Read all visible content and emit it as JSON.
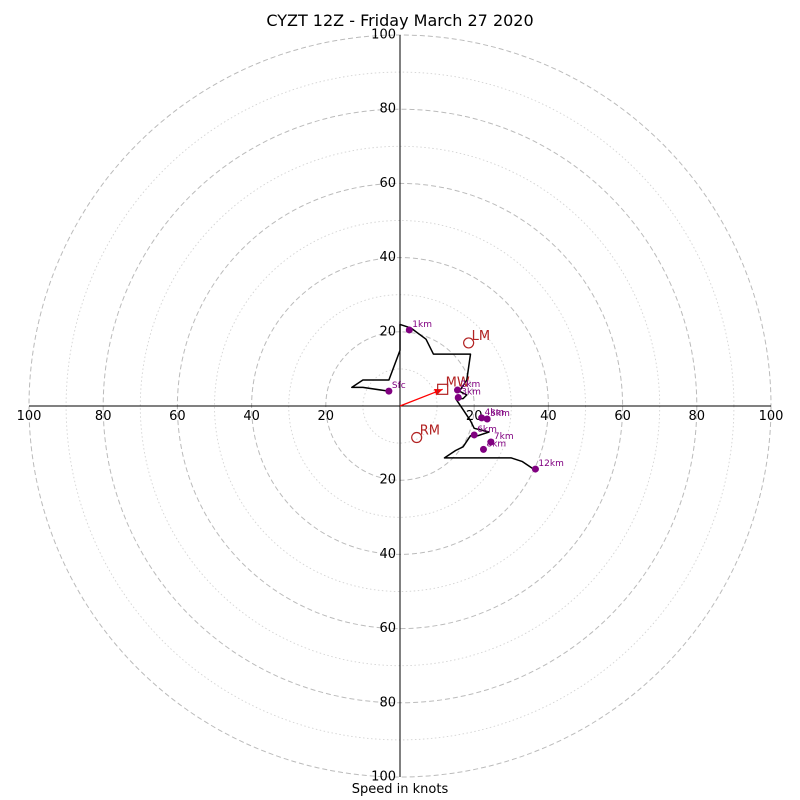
{
  "chart_data": {
    "type": "scatter",
    "title": "CYZT 12Z - Friday March 27 2020",
    "xlabel": "Speed in knots",
    "ylabel": "",
    "xlim": [
      -100,
      100
    ],
    "ylim": [
      -100,
      100
    ],
    "grid": true,
    "rings": [
      10,
      20,
      30,
      40,
      50,
      60,
      70,
      80,
      90,
      100
    ],
    "tick_labels": {
      "left": [
        "100",
        "80",
        "60",
        "40",
        "20"
      ],
      "right": [
        "20",
        "40",
        "60",
        "80",
        "100"
      ],
      "top": [
        "100",
        "80",
        "60",
        "40",
        "20"
      ],
      "bottom": [
        "20",
        "40",
        "60",
        "80",
        "100"
      ]
    },
    "hodograph_line": [
      [
        -3,
        4
      ],
      [
        -10,
        5
      ],
      [
        -13,
        5
      ],
      [
        -10,
        7
      ],
      [
        -3,
        7
      ],
      [
        0,
        15
      ],
      [
        0,
        22
      ],
      [
        3,
        21
      ],
      [
        7,
        18
      ],
      [
        9,
        14
      ],
      [
        19,
        14
      ],
      [
        18,
        7
      ],
      [
        16,
        4
      ],
      [
        18,
        3
      ],
      [
        17,
        2
      ],
      [
        15,
        2
      ],
      [
        17,
        -1
      ],
      [
        19,
        -4
      ],
      [
        20,
        -6
      ],
      [
        24,
        -7
      ],
      [
        21,
        -8
      ],
      [
        19,
        -8
      ],
      [
        17,
        -11
      ],
      [
        15,
        -12
      ],
      [
        12,
        -14
      ],
      [
        19,
        -14
      ],
      [
        26,
        -14
      ],
      [
        30,
        -14
      ],
      [
        33,
        -15
      ],
      [
        36,
        -17
      ]
    ],
    "height_points": [
      {
        "label": "Sfc",
        "u": -3,
        "v": 4
      },
      {
        "label": "1km",
        "u": 2.5,
        "v": 20.5
      },
      {
        "label": "2km",
        "u": 15.5,
        "v": 4.3
      },
      {
        "label": "3km",
        "u": 15.7,
        "v": 2.3
      },
      {
        "label": "4km",
        "u": 22,
        "v": -3.2
      },
      {
        "label": "5km",
        "u": 23.5,
        "v": -3.5
      },
      {
        "label": "6km",
        "u": 20,
        "v": -7.8
      },
      {
        "label": "7km",
        "u": 24.5,
        "v": -9.7
      },
      {
        "label": "8km",
        "u": 22.5,
        "v": -11.7
      },
      {
        "label": "12km",
        "u": 36.5,
        "v": -17
      }
    ],
    "motion_markers": [
      {
        "label": "LM",
        "u": 18.5,
        "v": 17
      },
      {
        "label": "RM",
        "u": 4.5,
        "v": -8.5
      }
    ],
    "mean_wind": {
      "label": "MW",
      "u": 11.5,
      "v": 4.5
    },
    "colors": {
      "hodograph": "#000000",
      "height_points": "#800080",
      "markers": "#b22222",
      "mean_wind_vector": "#ff0000",
      "rings": "#bbbbbb"
    }
  }
}
